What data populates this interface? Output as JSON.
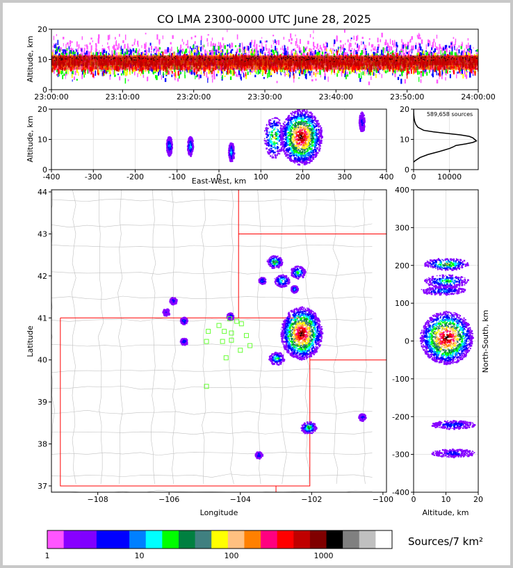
{
  "title": "CO LMA 2300-0000 UTC June 28, 2025",
  "colors": {
    "frame": "#c8c8c8",
    "axis": "#000000",
    "grid": "#dcdcdc",
    "state_border": "#ff0000",
    "county_border": "#c0c0c0",
    "station": "#66ff33"
  },
  "chart_data": [
    {
      "id": "time_height",
      "type": "heatmap",
      "ylabel": "Altitude, km",
      "xlim": [
        "23:00:00",
        "24:00:00"
      ],
      "ylim": [
        0,
        20
      ],
      "x_ticks": [
        "23:00:00",
        "23:10:00",
        "23:20:00",
        "23:30:00",
        "23:40:00",
        "23:50:00",
        "24:00:00"
      ],
      "y_ticks": [
        0,
        10,
        20
      ],
      "layers": [
        {
          "altitude_range_km": [
            2.5,
            20
          ],
          "color": "#ff55ff"
        },
        {
          "altitude_range_km": [
            3,
            17
          ],
          "color": "#0000ff"
        },
        {
          "altitude_range_km": [
            3.5,
            15.5
          ],
          "color": "#00ff00"
        },
        {
          "altitude_range_km": [
            4.5,
            14
          ],
          "color": "#ffff00"
        },
        {
          "altitude_range_km": [
            5,
            13
          ],
          "color": "#ff0000"
        },
        {
          "altitude_range_km": [
            7,
            12
          ],
          "color": "#c00000"
        }
      ]
    },
    {
      "id": "ew_height",
      "type": "heatmap",
      "xlabel": "East-West, km",
      "ylabel": "Altitude, km",
      "xlim": [
        -400,
        400
      ],
      "ylim": [
        0,
        20
      ],
      "x_ticks": [
        -400,
        -300,
        -200,
        -100,
        0,
        100,
        200,
        300,
        400
      ],
      "y_ticks": [
        0,
        10,
        20
      ],
      "clusters": [
        {
          "x_km": -120,
          "alt_km": 8,
          "level": 6
        },
        {
          "x_km": -70,
          "alt_km": 8,
          "level": 7
        },
        {
          "x_km": 28,
          "alt_km": 6,
          "level": 7
        },
        {
          "x_km": 130,
          "alt_km": 11,
          "level": 10
        },
        {
          "x_km": 195,
          "alt_km": 11,
          "level": 17
        },
        {
          "x_km": 340,
          "alt_km": 16,
          "level": 4
        }
      ]
    },
    {
      "id": "altitude_histogram",
      "type": "line",
      "annotation": "589,658 sources",
      "xlim": [
        0,
        18000
      ],
      "ylim": [
        0,
        20
      ],
      "x_ticks": [
        0,
        10000
      ],
      "y_ticks": [
        0,
        10,
        20
      ],
      "alt_km": [
        2.5,
        3,
        4,
        5,
        6,
        7,
        7.5,
        8,
        8.5,
        9,
        9.5,
        10,
        10.5,
        11,
        11.5,
        12,
        12.5,
        13,
        14,
        15,
        16,
        17,
        18,
        19,
        20
      ],
      "sources": [
        0,
        500,
        1800,
        4000,
        7200,
        10000,
        11000,
        11800,
        14500,
        16500,
        17500,
        17000,
        16500,
        15500,
        13000,
        9000,
        5500,
        2800,
        1200,
        600,
        300,
        150,
        60,
        20,
        0
      ]
    },
    {
      "id": "plan_view",
      "type": "heatmap",
      "xlabel": "Longitude",
      "ylabel": "Latitude",
      "xlim": [
        -109.3,
        -99.9
      ],
      "ylim": [
        36.85,
        44.05
      ],
      "x_ticks": [
        -108,
        -106,
        -104,
        -102,
        -100
      ],
      "y_ticks": [
        37,
        38,
        39,
        40,
        41,
        42,
        43,
        44
      ],
      "clusters": [
        {
          "lon": -102.3,
          "lat": 40.65,
          "level": 17
        },
        {
          "lon": -103.0,
          "lat": 40.05,
          "level": 8
        },
        {
          "lon": -103.05,
          "lat": 42.35,
          "level": 10
        },
        {
          "lon": -102.4,
          "lat": 42.1,
          "level": 8
        },
        {
          "lon": -102.85,
          "lat": 41.9,
          "level": 8
        },
        {
          "lon": -102.5,
          "lat": 41.7,
          "level": 7
        },
        {
          "lon": -103.4,
          "lat": 41.9,
          "level": 6
        },
        {
          "lon": -102.1,
          "lat": 38.4,
          "level": 9
        },
        {
          "lon": -100.6,
          "lat": 38.65,
          "level": 5
        },
        {
          "lon": -105.6,
          "lat": 40.45,
          "level": 5
        },
        {
          "lon": -105.6,
          "lat": 40.95,
          "level": 5
        },
        {
          "lon": -104.3,
          "lat": 41.05,
          "level": 5
        },
        {
          "lon": -106.1,
          "lat": 41.15,
          "level": 4
        },
        {
          "lon": -103.5,
          "lat": 37.75,
          "level": 5
        },
        {
          "lon": -105.9,
          "lat": 41.42,
          "level": 4
        }
      ],
      "stations": [
        {
          "lon": -104.6,
          "lat": 40.82
        },
        {
          "lon": -104.3,
          "lat": 40.98
        },
        {
          "lon": -104.1,
          "lat": 40.92
        },
        {
          "lon": -103.97,
          "lat": 40.86
        },
        {
          "lon": -104.45,
          "lat": 40.68
        },
        {
          "lon": -104.25,
          "lat": 40.64
        },
        {
          "lon": -104.9,
          "lat": 40.68
        },
        {
          "lon": -104.95,
          "lat": 40.44
        },
        {
          "lon": -104.5,
          "lat": 40.44
        },
        {
          "lon": -104.25,
          "lat": 40.47
        },
        {
          "lon": -103.83,
          "lat": 40.58
        },
        {
          "lon": -103.73,
          "lat": 40.34
        },
        {
          "lon": -104.0,
          "lat": 40.23
        },
        {
          "lon": -104.4,
          "lat": 40.05
        },
        {
          "lon": -104.95,
          "lat": 39.37
        }
      ]
    },
    {
      "id": "ns_height",
      "type": "heatmap",
      "xlabel": "Altitude, km",
      "ylabel": "North-South, km",
      "xlim": [
        0,
        20
      ],
      "ylim": [
        -400,
        400
      ],
      "x_ticks": [
        0,
        10,
        20
      ],
      "y_ticks": [
        -400,
        -300,
        -200,
        -100,
        0,
        100,
        200,
        300,
        400
      ],
      "clusters": [
        {
          "alt_km": 10,
          "ns_km": 205,
          "level": 10
        },
        {
          "alt_km": 10,
          "ns_km": 160,
          "level": 8
        },
        {
          "alt_km": 9,
          "ns_km": 135,
          "level": 6
        },
        {
          "alt_km": 10,
          "ns_km": 10,
          "level": 17
        },
        {
          "alt_km": 12,
          "ns_km": -220,
          "level": 5
        },
        {
          "alt_km": 12,
          "ns_km": -295,
          "level": 4
        }
      ]
    }
  ],
  "colorbar": {
    "label": "Sources/7 km²",
    "tick_labels": [
      "1",
      "10",
      "100",
      "1000"
    ],
    "colors": [
      "#ff55ff",
      "#8800ff",
      "#8000ff",
      "#0000ff",
      "#0000ff",
      "#0080ff",
      "#00ffff",
      "#00ff00",
      "#008040",
      "#408080",
      "#ffff00",
      "#ffc080",
      "#ff8000",
      "#ff0080",
      "#ff0000",
      "#c00000",
      "#800000",
      "#000000",
      "#808080",
      "#c0c0c0",
      "#ffffff"
    ]
  }
}
